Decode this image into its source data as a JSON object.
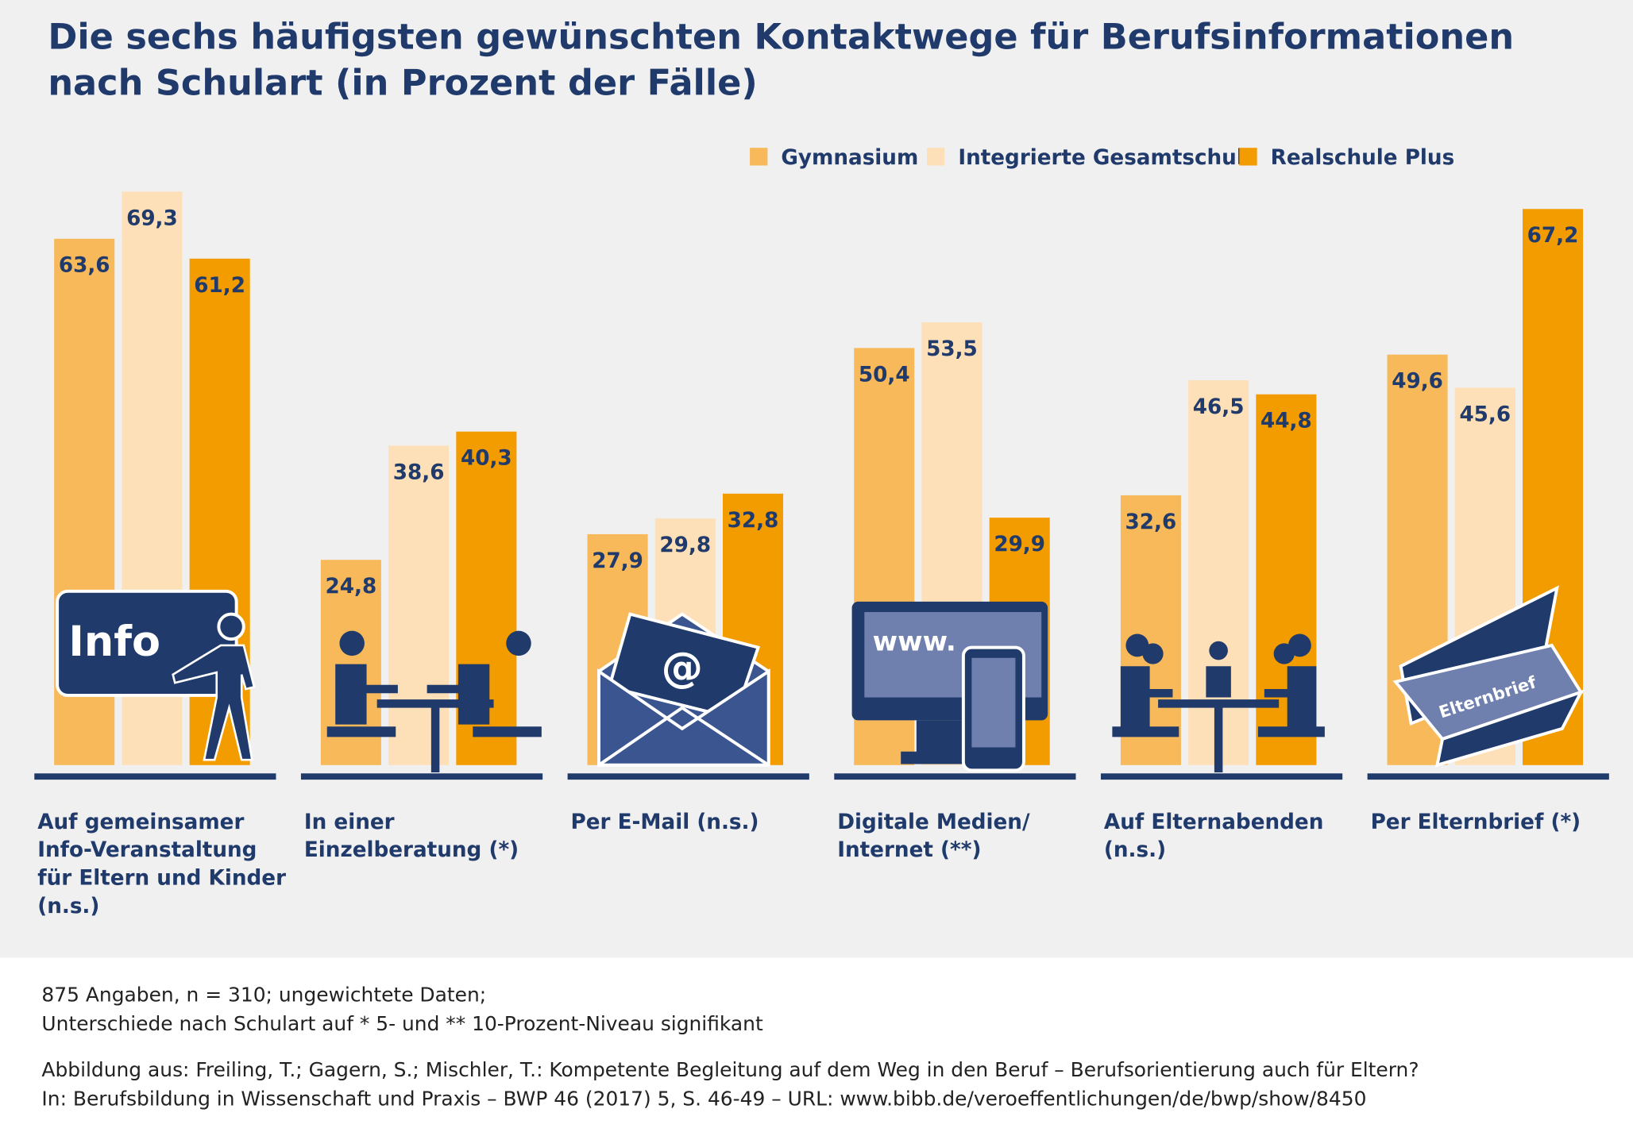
{
  "chart_data": {
    "type": "bar",
    "title": "Die sechs häufigsten gewünschten Kontaktwege für Berufsinformationen nach Schulart (in Prozent der Fälle)",
    "categories": [
      "Auf gemeinsamer Info-Veranstaltung für Eltern und Kinder (n.s.)",
      "In einer Einzelberatung (*)",
      "Per E-Mail (n.s.)",
      "Digitale Medien/ Internet (**)",
      "Auf Elternabenden (n.s.)",
      "Per Elternbrief (*)"
    ],
    "series": [
      {
        "name": "Gymnasium",
        "color": "#f7b95a",
        "values": [
          63.6,
          24.8,
          27.9,
          50.4,
          32.6,
          49.6
        ],
        "value_labels": [
          "63,6",
          "24,8",
          "27,9",
          "50,4",
          "32,6",
          "49,6"
        ]
      },
      {
        "name": "Integrierte Gesamtschule",
        "color": "#fde0b8",
        "values": [
          69.3,
          38.6,
          29.8,
          53.5,
          46.5,
          45.6
        ],
        "value_labels": [
          "69,3",
          "38,6",
          "29,8",
          "53,5",
          "46,5",
          "45,6"
        ]
      },
      {
        "name": "Realschule Plus",
        "color": "#f39c00",
        "values": [
          61.2,
          40.3,
          32.8,
          29.9,
          44.8,
          67.2
        ],
        "value_labels": [
          "61,2",
          "40,3",
          "32,8",
          "29,9",
          "44,8",
          "67,2"
        ]
      }
    ],
    "notes": [
      "875 Angaben, n = 310; ungewichtete Daten;",
      "Unterschiede nach Schulart auf * 5- und ** 10-Prozent-Niveau signifikant",
      "Abbildung aus: Freiling, T.; Gagern, S.; Mischler, T.: Kompetente Begleitung auf dem Weg in den Beruf – Berufsorientierung auch für Eltern?",
      "In: Berufsbildung in Wissenschaft und Praxis – BWP 46 (2017) 5, S. 46-49 – URL: www.bibb.de/veroeffentlichungen/de/bwp/show/8450"
    ],
    "icon_labels": {
      "info": "Info",
      "www": "www.",
      "at": "@",
      "letter": "Elternbrief"
    }
  }
}
